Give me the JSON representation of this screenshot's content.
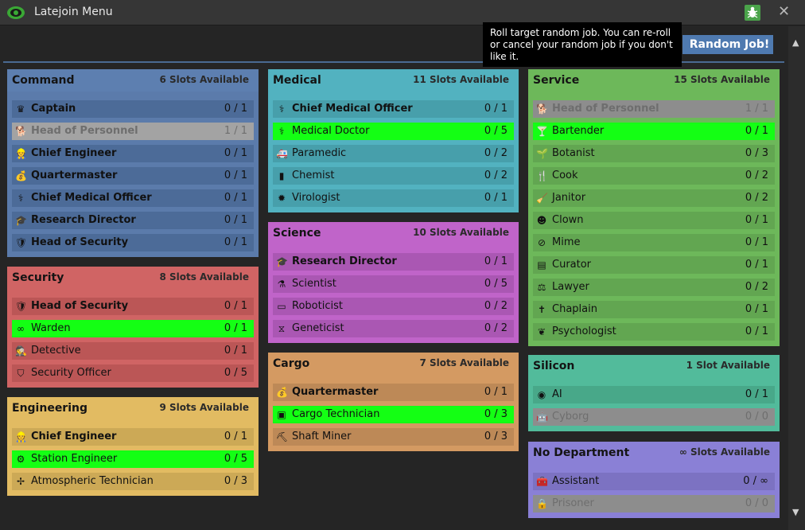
{
  "window": {
    "title": "Latejoin Menu"
  },
  "topbar": {
    "tooltip": "Roll target random job. You can re-roll or cancel your random job if you don't like it.",
    "random_button": "Random Job!"
  },
  "departments": {
    "command": {
      "name": "Command",
      "slots": "6 Slots Available",
      "jobs": [
        {
          "name": "Captain",
          "count": "0 / 1"
        },
        {
          "name": "Head of Personnel",
          "count": "1 / 1"
        },
        {
          "name": "Chief Engineer",
          "count": "0 / 1"
        },
        {
          "name": "Quartermaster",
          "count": "0 / 1"
        },
        {
          "name": "Chief Medical Officer",
          "count": "0 / 1"
        },
        {
          "name": "Research Director",
          "count": "0 / 1"
        },
        {
          "name": "Head of Security",
          "count": "0 / 1"
        }
      ]
    },
    "security": {
      "name": "Security",
      "slots": "8 Slots Available",
      "jobs": [
        {
          "name": "Head of Security",
          "count": "0 / 1"
        },
        {
          "name": "Warden",
          "count": "0 / 1"
        },
        {
          "name": "Detective",
          "count": "0 / 1"
        },
        {
          "name": "Security Officer",
          "count": "0 / 5"
        }
      ]
    },
    "engineering": {
      "name": "Engineering",
      "slots": "9 Slots Available",
      "jobs": [
        {
          "name": "Chief Engineer",
          "count": "0 / 1"
        },
        {
          "name": "Station Engineer",
          "count": "0 / 5"
        },
        {
          "name": "Atmospheric Technician",
          "count": "0 / 3"
        }
      ]
    },
    "medical": {
      "name": "Medical",
      "slots": "11 Slots Available",
      "jobs": [
        {
          "name": "Chief Medical Officer",
          "count": "0 / 1"
        },
        {
          "name": "Medical Doctor",
          "count": "0 / 5"
        },
        {
          "name": "Paramedic",
          "count": "0 / 2"
        },
        {
          "name": "Chemist",
          "count": "0 / 2"
        },
        {
          "name": "Virologist",
          "count": "0 / 1"
        }
      ]
    },
    "science": {
      "name": "Science",
      "slots": "10 Slots Available",
      "jobs": [
        {
          "name": "Research Director",
          "count": "0 / 1"
        },
        {
          "name": "Scientist",
          "count": "0 / 5"
        },
        {
          "name": "Roboticist",
          "count": "0 / 2"
        },
        {
          "name": "Geneticist",
          "count": "0 / 2"
        }
      ]
    },
    "cargo": {
      "name": "Cargo",
      "slots": "7 Slots Available",
      "jobs": [
        {
          "name": "Quartermaster",
          "count": "0 / 1"
        },
        {
          "name": "Cargo Technician",
          "count": "0 / 3"
        },
        {
          "name": "Shaft Miner",
          "count": "0 / 3"
        }
      ]
    },
    "service": {
      "name": "Service",
      "slots": "15 Slots Available",
      "jobs": [
        {
          "name": "Head of Personnel",
          "count": "1 / 1"
        },
        {
          "name": "Bartender",
          "count": "0 / 1"
        },
        {
          "name": "Botanist",
          "count": "0 / 3"
        },
        {
          "name": "Cook",
          "count": "0 / 2"
        },
        {
          "name": "Janitor",
          "count": "0 / 2"
        },
        {
          "name": "Clown",
          "count": "0 / 1"
        },
        {
          "name": "Mime",
          "count": "0 / 1"
        },
        {
          "name": "Curator",
          "count": "0 / 1"
        },
        {
          "name": "Lawyer",
          "count": "0 / 2"
        },
        {
          "name": "Chaplain",
          "count": "0 / 1"
        },
        {
          "name": "Psychologist",
          "count": "0 / 1"
        }
      ]
    },
    "silicon": {
      "name": "Silicon",
      "slots": "1 Slot Available",
      "jobs": [
        {
          "name": "AI",
          "count": "0 / 1"
        },
        {
          "name": "Cyborg",
          "count": "0 / 0"
        }
      ]
    },
    "nodept": {
      "name": "No Department",
      "slots": "∞ Slots Available",
      "jobs": [
        {
          "name": "Assistant",
          "count": "0 / ∞"
        },
        {
          "name": "Prisoner",
          "count": "0 / 0"
        }
      ]
    }
  },
  "colors": {
    "command": "#5b7bab",
    "security": "#d06464",
    "engineering": "#e2bb62",
    "medical": "#52b2c0",
    "science": "#c064c9",
    "cargo": "#d49a62",
    "service": "#6db85a",
    "silicon": "#52bb9b",
    "nodept": "#8a80d6",
    "available_highlight": "#14ff14",
    "disabled": "#8a8a8a"
  }
}
